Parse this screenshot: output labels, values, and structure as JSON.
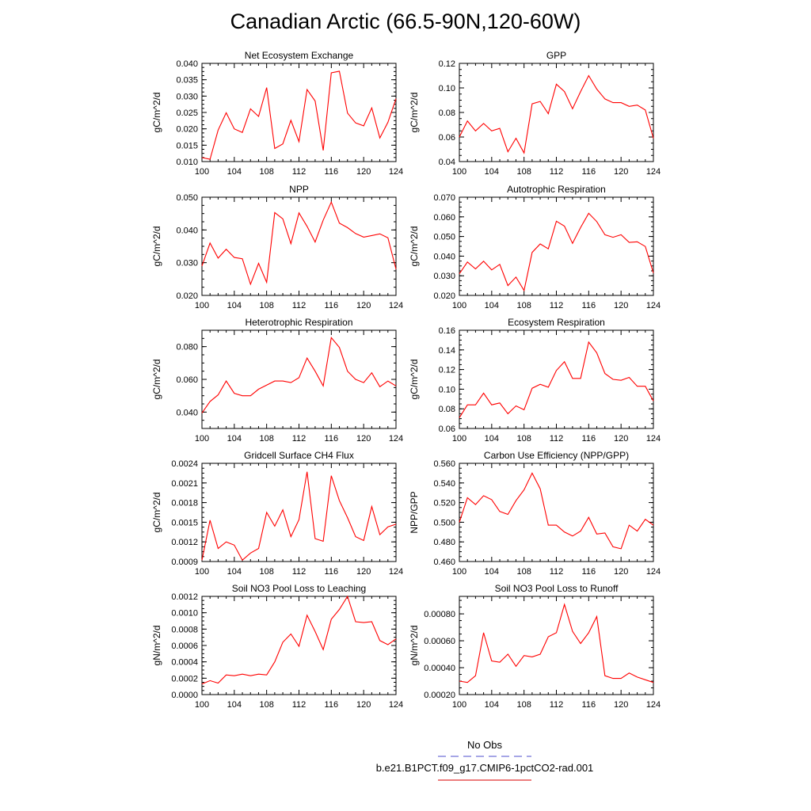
{
  "title": "Canadian Arctic (66.5-90N,120-60W)",
  "legend": {
    "entries": [
      {
        "label": "No Obs",
        "color": "#7070d8",
        "dash": "dashed"
      },
      {
        "label": "b.e21.B1PCT.f09_g17.CMIP6-1pctCO2-rad.001",
        "color": "#e03030",
        "dash": "solid"
      }
    ]
  },
  "line_color": "#ff0000",
  "chart_data": [
    {
      "type": "line",
      "title": "Net Ecosystem Exchange",
      "ylabel": "gC/m^2/d",
      "xlim": [
        100,
        124
      ],
      "ylim": [
        0.01,
        0.04
      ],
      "xticks": [
        100,
        104,
        108,
        112,
        116,
        120,
        124
      ],
      "yticks": [
        0.01,
        0.015,
        0.02,
        0.025,
        0.03,
        0.035,
        0.04
      ],
      "ytick_labels": [
        "0.010",
        "0.015",
        "0.020",
        "0.025",
        "0.030",
        "0.035",
        "0.040"
      ],
      "x": [
        100,
        101,
        102,
        103,
        104,
        105,
        106,
        107,
        108,
        109,
        110,
        111,
        112,
        113,
        114,
        115,
        116,
        117,
        118,
        119,
        120,
        121,
        122,
        123,
        124
      ],
      "series": [
        {
          "values": [
            0.0112,
            0.0107,
            0.0196,
            0.0249,
            0.02,
            0.0189,
            0.0261,
            0.0238,
            0.0326,
            0.014,
            0.0154,
            0.0226,
            0.0161,
            0.032,
            0.0285,
            0.0134,
            0.0371,
            0.0376,
            0.0248,
            0.0218,
            0.0209,
            0.0264,
            0.0172,
            0.022,
            0.0292
          ]
        }
      ]
    },
    {
      "type": "line",
      "title": "GPP",
      "ylabel": "gC/m^2/d",
      "xlim": [
        100,
        124
      ],
      "ylim": [
        0.04,
        0.12
      ],
      "xticks": [
        100,
        104,
        108,
        112,
        116,
        120,
        124
      ],
      "yticks": [
        0.04,
        0.06,
        0.08,
        0.1,
        0.12
      ],
      "ytick_labels": [
        "0.04",
        "0.06",
        "0.08",
        "0.10",
        "0.12"
      ],
      "x": [
        100,
        101,
        102,
        103,
        104,
        105,
        106,
        107,
        108,
        109,
        110,
        111,
        112,
        113,
        114,
        115,
        116,
        117,
        118,
        119,
        120,
        121,
        122,
        123,
        124
      ],
      "series": [
        {
          "values": [
            0.06,
            0.073,
            0.065,
            0.071,
            0.065,
            0.067,
            0.048,
            0.059,
            0.047,
            0.087,
            0.089,
            0.079,
            0.103,
            0.097,
            0.083,
            0.097,
            0.11,
            0.099,
            0.091,
            0.088,
            0.088,
            0.085,
            0.086,
            0.082,
            0.059
          ]
        }
      ]
    },
    {
      "type": "line",
      "title": "NPP",
      "ylabel": "gC/m^2/d",
      "xlim": [
        100,
        124
      ],
      "ylim": [
        0.02,
        0.05
      ],
      "xticks": [
        100,
        104,
        108,
        112,
        116,
        120,
        124
      ],
      "yticks": [
        0.02,
        0.03,
        0.04,
        0.05
      ],
      "ytick_labels": [
        "0.020",
        "0.030",
        "0.040",
        "0.050"
      ],
      "x": [
        100,
        101,
        102,
        103,
        104,
        105,
        106,
        107,
        108,
        109,
        110,
        111,
        112,
        113,
        114,
        115,
        116,
        117,
        118,
        119,
        120,
        121,
        122,
        123,
        124
      ],
      "series": [
        {
          "values": [
            0.029,
            0.036,
            0.0314,
            0.0341,
            0.0316,
            0.0312,
            0.0234,
            0.0298,
            0.024,
            0.0453,
            0.0434,
            0.0358,
            0.0452,
            0.0411,
            0.0363,
            0.043,
            0.0485,
            0.0421,
            0.0407,
            0.0389,
            0.0378,
            0.0383,
            0.0388,
            0.0376,
            0.028
          ]
        }
      ]
    },
    {
      "type": "line",
      "title": "Autotrophic Respiration",
      "ylabel": "gC/m^2/d",
      "xlim": [
        100,
        124
      ],
      "ylim": [
        0.02,
        0.07
      ],
      "xticks": [
        100,
        104,
        108,
        112,
        116,
        120,
        124
      ],
      "yticks": [
        0.02,
        0.03,
        0.04,
        0.05,
        0.06,
        0.07
      ],
      "ytick_labels": [
        "0.020",
        "0.030",
        "0.040",
        "0.050",
        "0.060",
        "0.070"
      ],
      "x": [
        100,
        101,
        102,
        103,
        104,
        105,
        106,
        107,
        108,
        109,
        110,
        111,
        112,
        113,
        114,
        115,
        116,
        117,
        118,
        119,
        120,
        121,
        122,
        123,
        124
      ],
      "series": [
        {
          "values": [
            0.031,
            0.037,
            0.0335,
            0.0374,
            0.033,
            0.0358,
            0.025,
            0.0293,
            0.0225,
            0.0419,
            0.0462,
            0.0437,
            0.0578,
            0.0553,
            0.0465,
            0.0546,
            0.0618,
            0.0576,
            0.0509,
            0.0496,
            0.0509,
            0.047,
            0.0473,
            0.0449,
            0.0314
          ]
        }
      ]
    },
    {
      "type": "line",
      "title": "Heterotrophic Respiration",
      "ylabel": "gC/m^2/d",
      "xlim": [
        100,
        124
      ],
      "ylim": [
        0.03,
        0.09
      ],
      "xticks": [
        100,
        104,
        108,
        112,
        116,
        120,
        124
      ],
      "yticks": [
        0.04,
        0.06,
        0.08
      ],
      "ytick_labels": [
        "0.040",
        "0.060",
        "0.080"
      ],
      "x": [
        100,
        101,
        102,
        103,
        104,
        105,
        106,
        107,
        108,
        109,
        110,
        111,
        112,
        113,
        114,
        115,
        116,
        117,
        118,
        119,
        120,
        121,
        122,
        123,
        124
      ],
      "series": [
        {
          "values": [
            0.0395,
            0.0465,
            0.0505,
            0.059,
            0.0515,
            0.05,
            0.05,
            0.054,
            0.0565,
            0.059,
            0.059,
            0.058,
            0.061,
            0.073,
            0.065,
            0.056,
            0.0855,
            0.0795,
            0.065,
            0.06,
            0.058,
            0.064,
            0.0555,
            0.059,
            0.056
          ]
        }
      ]
    },
    {
      "type": "line",
      "title": "Ecosystem Respiration",
      "ylabel": "gC/m^2/d",
      "xlim": [
        100,
        124
      ],
      "ylim": [
        0.06,
        0.16
      ],
      "xticks": [
        100,
        104,
        108,
        112,
        116,
        120,
        124
      ],
      "yticks": [
        0.06,
        0.08,
        0.1,
        0.12,
        0.14,
        0.16
      ],
      "ytick_labels": [
        "0.06",
        "0.08",
        "0.10",
        "0.12",
        "0.14",
        "0.16"
      ],
      "x": [
        100,
        101,
        102,
        103,
        104,
        105,
        106,
        107,
        108,
        109,
        110,
        111,
        112,
        113,
        114,
        115,
        116,
        117,
        118,
        119,
        120,
        121,
        122,
        123,
        124
      ],
      "series": [
        {
          "values": [
            0.071,
            0.084,
            0.084,
            0.096,
            0.084,
            0.086,
            0.075,
            0.083,
            0.079,
            0.101,
            0.105,
            0.102,
            0.119,
            0.128,
            0.111,
            0.111,
            0.148,
            0.137,
            0.116,
            0.11,
            0.109,
            0.112,
            0.103,
            0.103,
            0.088
          ]
        }
      ]
    },
    {
      "type": "line",
      "title": "Gridcell Surface CH4 Flux",
      "ylabel": "gC/m^2/d",
      "xlim": [
        100,
        124
      ],
      "ylim": [
        0.0009,
        0.0024
      ],
      "xticks": [
        100,
        104,
        108,
        112,
        116,
        120,
        124
      ],
      "yticks": [
        0.0009,
        0.0012,
        0.0015,
        0.0018,
        0.0021,
        0.0024
      ],
      "ytick_labels": [
        "0.0009",
        "0.0012",
        "0.0015",
        "0.0018",
        "0.0021",
        "0.0024"
      ],
      "x": [
        100,
        101,
        102,
        103,
        104,
        105,
        106,
        107,
        108,
        109,
        110,
        111,
        112,
        113,
        114,
        115,
        116,
        117,
        118,
        119,
        120,
        121,
        122,
        123,
        124
      ],
      "series": [
        {
          "values": [
            0.00092,
            0.00153,
            0.0011,
            0.0012,
            0.00115,
            0.00092,
            0.00103,
            0.0011,
            0.00165,
            0.00144,
            0.00169,
            0.00128,
            0.00154,
            0.00227,
            0.00125,
            0.00121,
            0.00221,
            0.00183,
            0.00157,
            0.00128,
            0.00122,
            0.00174,
            0.00131,
            0.00143,
            0.00147
          ]
        }
      ]
    },
    {
      "type": "line",
      "title": "Carbon Use Efficiency (NPP/GPP)",
      "ylabel": "NPP/GPP",
      "xlim": [
        100,
        124
      ],
      "ylim": [
        0.46,
        0.56
      ],
      "xticks": [
        100,
        104,
        108,
        112,
        116,
        120,
        124
      ],
      "yticks": [
        0.46,
        0.48,
        0.5,
        0.52,
        0.54,
        0.56
      ],
      "ytick_labels": [
        "0.460",
        "0.480",
        "0.500",
        "0.520",
        "0.540",
        "0.560"
      ],
      "x": [
        100,
        101,
        102,
        103,
        104,
        105,
        106,
        107,
        108,
        109,
        110,
        111,
        112,
        113,
        114,
        115,
        116,
        117,
        118,
        119,
        120,
        121,
        122,
        123,
        124
      ],
      "series": [
        {
          "values": [
            0.5,
            0.525,
            0.518,
            0.527,
            0.523,
            0.511,
            0.508,
            0.522,
            0.533,
            0.55,
            0.534,
            0.497,
            0.497,
            0.49,
            0.486,
            0.491,
            0.505,
            0.488,
            0.489,
            0.475,
            0.473,
            0.497,
            0.491,
            0.503,
            0.497
          ]
        }
      ]
    },
    {
      "type": "line",
      "title": "Soil NO3 Pool Loss to Leaching",
      "ylabel": "gN/m^2/d",
      "xlim": [
        100,
        124
      ],
      "ylim": [
        0.0,
        0.0012
      ],
      "xticks": [
        100,
        104,
        108,
        112,
        116,
        120,
        124
      ],
      "yticks": [
        0.0,
        0.0002,
        0.0004,
        0.0006,
        0.0008,
        0.001,
        0.0012
      ],
      "ytick_labels": [
        "0.0000",
        "0.0002",
        "0.0004",
        "0.0006",
        "0.0008",
        "0.0010",
        "0.0012"
      ],
      "x": [
        100,
        101,
        102,
        103,
        104,
        105,
        106,
        107,
        108,
        109,
        110,
        111,
        112,
        113,
        114,
        115,
        116,
        117,
        118,
        119,
        120,
        121,
        122,
        123,
        124
      ],
      "series": [
        {
          "values": [
            0.00013,
            0.00017,
            0.00014,
            0.00024,
            0.00023,
            0.00025,
            0.00023,
            0.00025,
            0.00024,
            0.0004,
            0.00064,
            0.00074,
            0.00059,
            0.00097,
            0.00077,
            0.00055,
            0.00092,
            0.00104,
            0.0012,
            0.00089,
            0.00088,
            0.00089,
            0.00066,
            0.00061,
            0.00068
          ]
        }
      ]
    },
    {
      "type": "line",
      "title": "Soil NO3 Pool Loss to Runoff",
      "ylabel": "gN/m^2/d",
      "xlim": [
        100,
        124
      ],
      "ylim": [
        0.0002,
        0.00093
      ],
      "xticks": [
        100,
        104,
        108,
        112,
        116,
        120,
        124
      ],
      "yticks": [
        0.0002,
        0.0004,
        0.0006,
        0.0008
      ],
      "ytick_labels": [
        "0.00020",
        "0.00040",
        "0.00060",
        "0.00080"
      ],
      "x": [
        100,
        101,
        102,
        103,
        104,
        105,
        106,
        107,
        108,
        109,
        110,
        111,
        112,
        113,
        114,
        115,
        116,
        117,
        118,
        119,
        120,
        121,
        122,
        123,
        124
      ],
      "series": [
        {
          "values": [
            0.0003,
            0.00029,
            0.00034,
            0.00066,
            0.00045,
            0.00044,
            0.0005,
            0.00041,
            0.00049,
            0.00048,
            0.0005,
            0.00063,
            0.00066,
            0.00087,
            0.00067,
            0.00058,
            0.00066,
            0.00078,
            0.00034,
            0.00032,
            0.00032,
            0.00036,
            0.00033,
            0.00031,
            0.00029
          ]
        }
      ]
    }
  ]
}
